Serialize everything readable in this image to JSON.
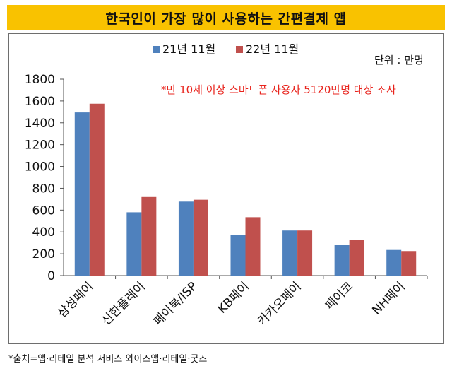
{
  "chart_data": {
    "type": "bar",
    "title": "한국인이 가장 많이 사용하는 간편결제 앱",
    "unit_label": "단위 : 만명",
    "annotation": "*만 10세 이상 스마트폰 사용자 5120만명 대상 조사",
    "categories": [
      "삼성페이",
      "신한플레이",
      "페이북/ISP",
      "KB페이",
      "카카오페이",
      "페이코",
      "NH페이"
    ],
    "series": [
      {
        "name": "21년 11월",
        "color": "#4f81bd",
        "values": [
          1495,
          580,
          678,
          370,
          413,
          280,
          235
        ]
      },
      {
        "name": "22년 11월",
        "color": "#c0504d",
        "values": [
          1575,
          720,
          695,
          535,
          413,
          330,
          225
        ]
      }
    ],
    "ylim": [
      0,
      1800
    ],
    "yticks": [
      0,
      200,
      400,
      600,
      800,
      1000,
      1200,
      1400,
      1600,
      1800
    ],
    "legend_position": "top-center",
    "grid": false
  },
  "footer": {
    "source": "*출처=앱·리테일 분석 서비스 와이즈앱·리테일·굿즈"
  }
}
